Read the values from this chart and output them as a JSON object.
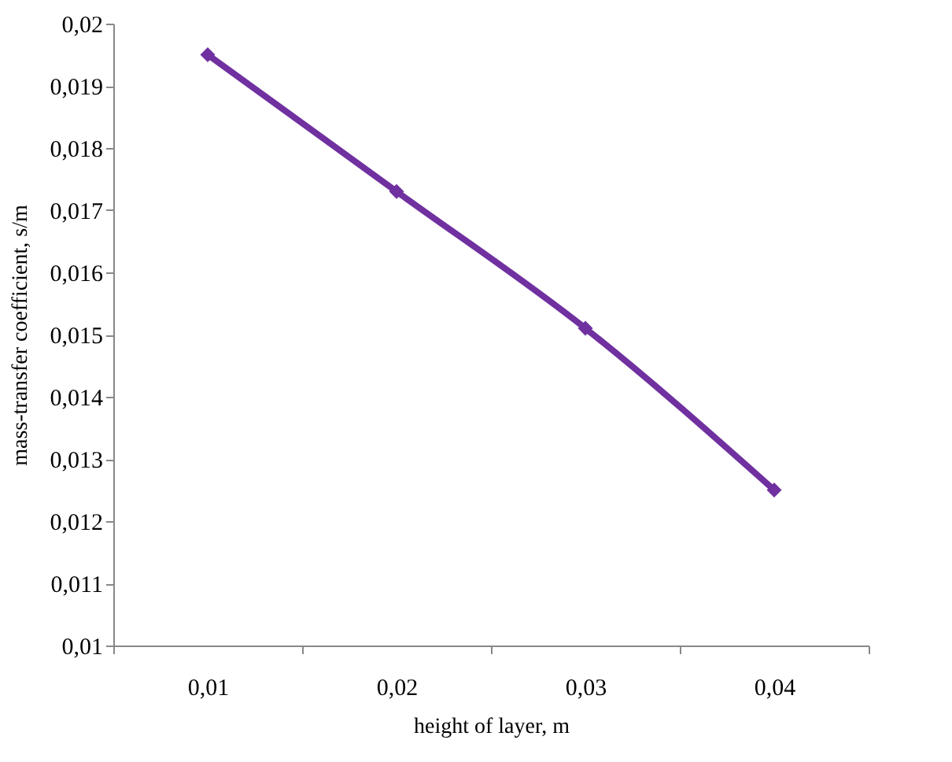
{
  "chart_data": {
    "type": "line",
    "xlabel": "height of layer, m",
    "ylabel": "mass-transfer coefficient, s/m",
    "categories": [
      "0,01",
      "0,02",
      "0,03",
      "0,04"
    ],
    "series": [
      {
        "color": "#7030a0",
        "values": [
          0.0195,
          0.0173,
          0.0151,
          0.0125
        ]
      }
    ],
    "ylim": [
      0.01,
      0.02
    ],
    "yticks": [
      {
        "value": 0.01,
        "label": "0,01"
      },
      {
        "value": 0.011,
        "label": "0,011"
      },
      {
        "value": 0.012,
        "label": "0,012"
      },
      {
        "value": 0.013,
        "label": "0,013"
      },
      {
        "value": 0.014,
        "label": "0,014"
      },
      {
        "value": 0.015,
        "label": "0,015"
      },
      {
        "value": 0.016,
        "label": "0,016"
      },
      {
        "value": 0.017,
        "label": "0,017"
      },
      {
        "value": 0.018,
        "label": "0,018"
      },
      {
        "value": 0.019,
        "label": "0,019"
      },
      {
        "value": 0.02,
        "label": "0,02"
      }
    ],
    "marker": "diamond",
    "line_style": "solid",
    "grid": false,
    "legend": false
  }
}
